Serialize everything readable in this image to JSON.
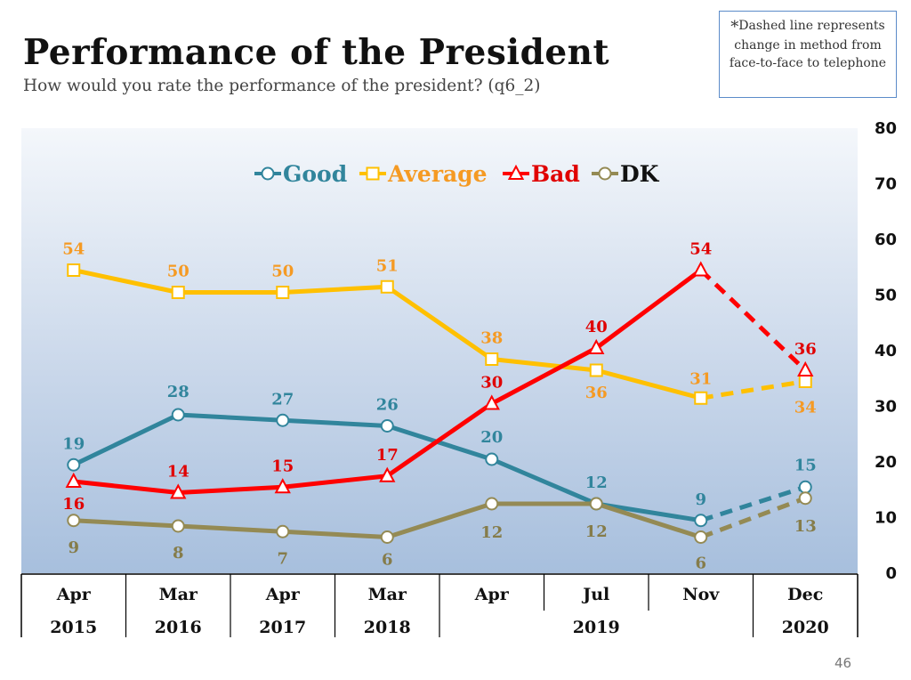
{
  "header": {
    "title": "Performance of the President",
    "subtitle": "How would you rate the performance of the president? (q6_2)"
  },
  "note": {
    "star": "*",
    "line1": "Dashed line represents",
    "line2": "change in method from",
    "line3": "face-to-face to telephone"
  },
  "page_number": "46",
  "chart_data": {
    "type": "line",
    "title": "Performance of the President",
    "x": [
      "Apr 2015",
      "Mar 2016",
      "Apr 2017",
      "Mar 2018",
      "Apr 2019",
      "Jul 2019",
      "Nov 2019",
      "Dec 2020"
    ],
    "month_labels": [
      "Apr",
      "Mar",
      "Apr",
      "Mar",
      "Apr",
      "Jul",
      "Nov",
      "Dec"
    ],
    "year_labels": [
      {
        "label": "2015",
        "span": [
          0,
          0
        ]
      },
      {
        "label": "2016",
        "span": [
          1,
          1
        ]
      },
      {
        "label": "2017",
        "span": [
          2,
          2
        ]
      },
      {
        "label": "2018",
        "span": [
          3,
          3
        ]
      },
      {
        "label": "2019",
        "span": [
          4,
          6
        ]
      },
      {
        "label": "2020",
        "span": [
          7,
          7
        ]
      }
    ],
    "ylim": [
      0,
      80
    ],
    "yticks": [
      0,
      10,
      20,
      30,
      40,
      50,
      60,
      70,
      80
    ],
    "y_axis_side": "right",
    "legend_position": "top",
    "dashed_from_index": 6,
    "series": [
      {
        "name": "Good",
        "color": "#31859c",
        "marker": "circle",
        "values": [
          19,
          28,
          27,
          26,
          20,
          12,
          9,
          15
        ],
        "labels": [
          "19",
          "28",
          "27",
          "26",
          "20",
          "12",
          "9",
          "15"
        ]
      },
      {
        "name": "Average",
        "color": "#ffc000",
        "label_color": "#f59a23",
        "marker": "square",
        "values": [
          54,
          50,
          50,
          51,
          38,
          36,
          31,
          34
        ],
        "labels": [
          "54",
          "50",
          "50",
          "51",
          "38",
          "36",
          "31",
          "34"
        ]
      },
      {
        "name": "Bad",
        "color": "#ff0000",
        "label_color": "#e00000",
        "marker": "triangle",
        "values": [
          16,
          14,
          15,
          17,
          30,
          40,
          54,
          36
        ],
        "labels": [
          "16",
          "14",
          "15",
          "17",
          "30",
          "40",
          "54",
          "36"
        ]
      },
      {
        "name": "DK",
        "color": "#948a54",
        "label_color": "#857c4a",
        "legend_color": "#111111",
        "marker": "circle",
        "values": [
          9,
          8,
          7,
          6,
          12,
          12,
          6,
          13
        ],
        "labels": [
          "9",
          "8",
          "7",
          "6",
          "12",
          "12",
          "6",
          "13"
        ]
      }
    ]
  }
}
